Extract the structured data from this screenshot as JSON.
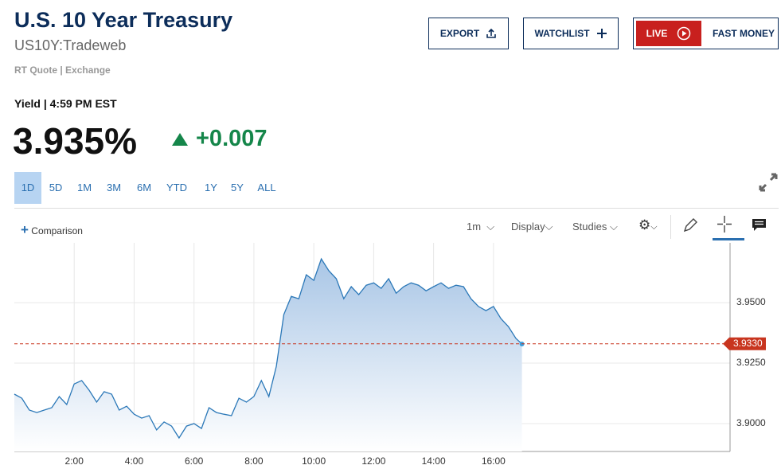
{
  "header": {
    "title": "U.S. 10 Year Treasury",
    "symbol": "US10Y:Tradeweb",
    "source": [
      "RT Quote",
      "Exchange"
    ]
  },
  "buttons": {
    "export": "EXPORT",
    "watchlist": "WATCHLIST",
    "live": "LIVE",
    "fast_money": "FAST MONEY"
  },
  "quote": {
    "label": "Yield",
    "time": "4:59 PM EST",
    "price": "3.935%",
    "change": "+0.007"
  },
  "ranges": [
    "1D",
    "5D",
    "1M",
    "3M",
    "6M",
    "YTD",
    "1Y",
    "5Y",
    "ALL"
  ],
  "toolbar": {
    "comparison": "Comparison",
    "interval": "1m",
    "display": "Display",
    "studies": "Studies"
  },
  "chart_data": {
    "type": "area",
    "x": [
      0,
      0.25,
      0.5,
      0.75,
      1,
      1.25,
      1.5,
      1.75,
      2,
      2.25,
      2.5,
      2.75,
      3,
      3.25,
      3.5,
      3.75,
      4,
      4.25,
      4.5,
      4.75,
      5,
      5.25,
      5.5,
      5.75,
      6,
      6.25,
      6.5,
      6.75,
      7,
      7.25,
      7.5,
      7.75,
      8,
      8.25,
      8.5,
      8.75,
      9,
      9.25,
      9.5,
      9.75,
      10,
      10.25,
      10.5,
      10.75,
      11,
      11.25,
      11.5,
      11.75,
      12,
      12.25,
      12.5,
      12.75,
      13,
      13.25,
      13.5,
      13.75,
      14,
      14.25,
      14.5,
      14.75,
      15,
      15.25,
      15.5,
      15.75,
      16,
      16.25,
      16.5,
      16.75,
      16.95
    ],
    "values": [
      3.9122,
      3.9105,
      3.9056,
      3.9046,
      3.9056,
      3.9066,
      3.9112,
      3.9079,
      3.9164,
      3.9178,
      3.9138,
      3.9089,
      3.9132,
      3.9122,
      3.9056,
      3.9072,
      3.9039,
      3.9023,
      3.9033,
      3.8974,
      3.9007,
      3.899,
      3.8941,
      3.899,
      3.9,
      3.898,
      3.9066,
      3.9046,
      3.9039,
      3.9033,
      3.9105,
      3.9089,
      3.9112,
      3.9178,
      3.9112,
      3.9237,
      3.9451,
      3.9526,
      3.9516,
      3.9615,
      3.9592,
      3.9681,
      3.9632,
      3.9599,
      3.9516,
      3.9566,
      3.9533,
      3.9572,
      3.9582,
      3.9559,
      3.9599,
      3.9539,
      3.9566,
      3.9582,
      3.9572,
      3.9549,
      3.9566,
      3.9582,
      3.9559,
      3.9572,
      3.9566,
      3.9516,
      3.9484,
      3.9467,
      3.9484,
      3.9434,
      3.9401,
      3.9352,
      3.9329
    ],
    "color": "#2b78b8",
    "xlim": [
      0,
      23.9
    ],
    "xticks": [
      {
        "value": 2,
        "label": "2:00"
      },
      {
        "value": 4,
        "label": "4:00"
      },
      {
        "value": 6,
        "label": "6:00"
      },
      {
        "value": 8,
        "label": "8:00"
      },
      {
        "value": 10,
        "label": "10:00"
      },
      {
        "value": 12,
        "label": "12:00"
      },
      {
        "value": 14,
        "label": "14:00"
      },
      {
        "value": 16,
        "label": "16:00"
      }
    ],
    "ylim": [
      3.8885,
      3.9747
    ],
    "yticks": [
      {
        "value": 3.9,
        "label": "3.9000"
      },
      {
        "value": 3.925,
        "label": "3.9250"
      },
      {
        "value": 3.95,
        "label": "3.9500"
      }
    ],
    "reference_line": {
      "value": 3.933,
      "label": "3.9330",
      "color": "#c8351f"
    },
    "grid": true
  }
}
